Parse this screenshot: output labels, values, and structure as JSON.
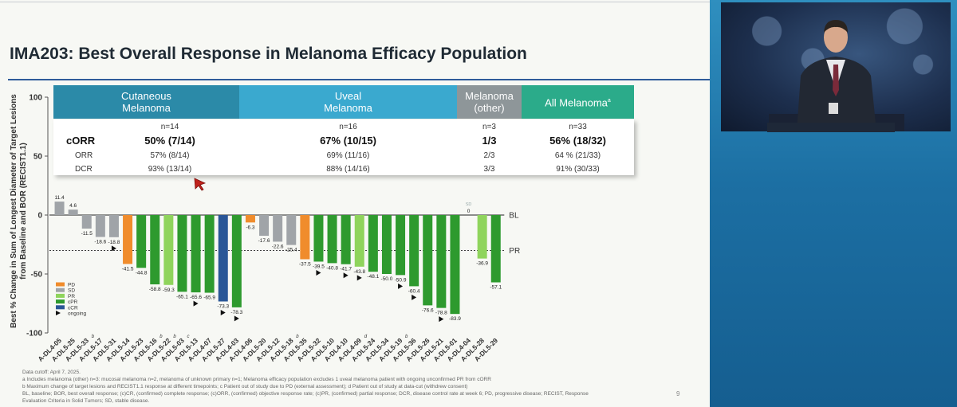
{
  "slide": {
    "title": "IMA203: Best Overall Response in Melanoma Efficacy Population",
    "page_number": "9"
  },
  "headers": [
    {
      "line1": "Cutaneous",
      "line2": "Melanoma",
      "color": "#2b8aa8"
    },
    {
      "line1": "Uveal",
      "line2": "Melanoma",
      "color": "#3aa9cf"
    },
    {
      "line1": "Melanoma",
      "line2": "(other)",
      "color": "#8e9699"
    },
    {
      "line1": "All Melanoma",
      "sup": "a",
      "line2": "",
      "color": "#2bab8a"
    }
  ],
  "stats": {
    "row_labels": {
      "corr": "cORR",
      "orr": "ORR",
      "dcr": "DCR"
    },
    "columns": [
      {
        "n": "n=14",
        "corr": "50% (7/14)",
        "orr": "57% (8/14)",
        "dcr": "93% (13/14)"
      },
      {
        "n": "n=16",
        "corr": "67% (10/15)",
        "orr": "69% (11/16)",
        "dcr": "88% (14/16)"
      },
      {
        "n": "n=3",
        "corr": "1/3",
        "orr": "2/3",
        "dcr": "3/3"
      },
      {
        "n": "n=33",
        "corr": "56% (18/32)",
        "orr": "64 % (21/33)",
        "dcr": "91% (30/33)"
      }
    ]
  },
  "chart_data": {
    "type": "bar",
    "title": "",
    "ylabel_line1": "Best % Change in Sum of Longest Diameter of Target Lesions",
    "ylabel_line2": "from Baseline and BOR (RECIST1.1)",
    "ylim": [
      -100,
      100
    ],
    "yticks": [
      "100",
      "50",
      "0",
      "-50",
      "-100"
    ],
    "ytick_values": [
      100,
      50,
      0,
      -50,
      -100
    ],
    "reference_lines": [
      {
        "label": "BL",
        "value": 0
      },
      {
        "label": "PR",
        "value": -30
      }
    ],
    "colors": {
      "PD": "#f08c2c",
      "SD": "#a0a4a8",
      "PR": "#8fd45c",
      "cPR": "#2e9a2e",
      "cCR": "#2a5697"
    },
    "legend": [
      {
        "key": "PD",
        "label": "PD"
      },
      {
        "key": "SD",
        "label": "SD"
      },
      {
        "key": "PR",
        "label": "PR"
      },
      {
        "key": "cPR",
        "label": "cPR"
      },
      {
        "key": "cCR",
        "label": "cCR"
      },
      {
        "key": "ongoing",
        "label": "ongoing"
      }
    ],
    "bars": [
      {
        "id": "A-DL4-05",
        "value": 11.4,
        "label": "11.4",
        "cat": "SD",
        "ongoing": false
      },
      {
        "id": "A-DL5-25",
        "value": 4.6,
        "label": "4.6",
        "cat": "SD",
        "ongoing": false
      },
      {
        "id": "A-DL5-33",
        "sup": "b",
        "value": -11.5,
        "label": "-11.5",
        "cat": "SD",
        "ongoing": false
      },
      {
        "id": "A-DL5-17",
        "value": -18.6,
        "label": "-18.6",
        "cat": "SD",
        "ongoing": false
      },
      {
        "id": "A-DL5-31",
        "value": -18.8,
        "label": "-18.8",
        "cat": "SD",
        "ongoing": true
      },
      {
        "id": "A-DL5-14",
        "value": -41.5,
        "label": "-41.5",
        "cat": "PD",
        "ongoing": false
      },
      {
        "id": "A-DL5-23",
        "value": -44.8,
        "label": "-44.8",
        "cat": "cPR",
        "ongoing": false
      },
      {
        "id": "A-DL5-16",
        "sup": "b",
        "value": -58.8,
        "label": "-58.8",
        "cat": "cPR",
        "ongoing": false
      },
      {
        "id": "A-DL5-22",
        "sup": "b",
        "value": -59.3,
        "label": "-59.3",
        "cat": "PR",
        "ongoing": false
      },
      {
        "id": "A-DL5-03",
        "sup": "c",
        "value": -65.1,
        "label": "-65.1",
        "cat": "cPR",
        "ongoing": false
      },
      {
        "id": "A-DL5-13",
        "value": -65.6,
        "label": "-65.6",
        "cat": "cPR",
        "ongoing": true
      },
      {
        "id": "A-DL4-07",
        "value": -65.9,
        "label": "-65.9",
        "cat": "cPR",
        "ongoing": false
      },
      {
        "id": "A-DL5-27",
        "value": -73.3,
        "label": "-73.3",
        "cat": "cCR",
        "ongoing": true
      },
      {
        "id": "A-DL4-03",
        "value": -78.3,
        "label": "-78.3",
        "cat": "cPR",
        "ongoing": true
      },
      {
        "id": "A-DL4-06",
        "value": -6.3,
        "label": "-6.3",
        "cat": "PD",
        "ongoing": false
      },
      {
        "id": "A-DL5-20",
        "value": -17.6,
        "label": "-17.6",
        "cat": "SD",
        "ongoing": false
      },
      {
        "id": "A-DL5-12",
        "value": -22.6,
        "label": "-22.6",
        "cat": "SD",
        "ongoing": false
      },
      {
        "id": "A-DL5-18",
        "sup": "b",
        "value": -25.4,
        "label": "-25.4",
        "cat": "SD",
        "ongoing": false
      },
      {
        "id": "A-DL5-35",
        "value": -37.5,
        "label": "-37.5",
        "cat": "PD",
        "ongoing": false
      },
      {
        "id": "A-DL5-32",
        "value": -39.5,
        "label": "-39.5",
        "cat": "cPR",
        "ongoing": true
      },
      {
        "id": "A-DL5-10",
        "value": -40.8,
        "label": "-40.8",
        "cat": "cPR",
        "ongoing": false
      },
      {
        "id": "A-DL4-10",
        "value": -41.7,
        "label": "-41.7",
        "cat": "cPR",
        "ongoing": true
      },
      {
        "id": "A-DL4-09",
        "sup": "d",
        "value": -43.8,
        "label": "-43.8",
        "cat": "PR",
        "ongoing": true
      },
      {
        "id": "A-DL5-24",
        "value": -48.1,
        "label": "-48.1",
        "cat": "cPR",
        "ongoing": false
      },
      {
        "id": "A-DL5-34",
        "value": -50.0,
        "label": "-50.0",
        "cat": "cPR",
        "ongoing": false
      },
      {
        "id": "A-DL5-19",
        "sup": "b",
        "value": -50.9,
        "label": "-50.9",
        "cat": "cPR",
        "ongoing": true
      },
      {
        "id": "A-DL5-36",
        "value": -60.4,
        "label": "-60.4",
        "cat": "cPR",
        "ongoing": true
      },
      {
        "id": "A-DL5-26",
        "value": -76.6,
        "label": "-76.6",
        "cat": "cPR",
        "ongoing": false
      },
      {
        "id": "A-DL5-21",
        "value": -78.8,
        "label": "-78.8",
        "cat": "cPR",
        "ongoing": true
      },
      {
        "id": "A-DL5-01",
        "value": -83.9,
        "label": "-83.9",
        "cat": "cPR",
        "ongoing": false
      },
      {
        "id": "A-DL4-04",
        "value": 0,
        "label": "0",
        "top_label": "SD",
        "cat": "SD",
        "ongoing": false
      },
      {
        "id": "A-DL5-28",
        "value": -36.9,
        "label": "-36.9",
        "cat": "PR",
        "ongoing": false
      },
      {
        "id": "A-DL5-29",
        "value": -57.1,
        "label": "-57.1",
        "cat": "cPR",
        "ongoing": false
      }
    ]
  },
  "footnotes": [
    "Data cutoff: April 7, 2025.",
    "a Includes melanoma (other) n=3: mucosal melanoma n=2, melanoma of unknown primary n=1; Melanoma efficacy population excludes 1 uveal melanoma patient with ongoing unconfirmed PR from cORR",
    "b Maximum change of target lesions and RECIST1.1 response at different timepoints; c Patient out of study due to PD (external assessment); d Patient out of study at data-cut (withdrew consent)",
    "BL, baseline; BOR, best overall response; (c)CR, (confirmed) complete response; (c)ORR, (confirmed) objective response rate; (c)PR, (confirmed) partial response; DCR, disease control rate at week 6; PD, progressive disease; RECIST, Response",
    "Evaluation Criteria in Solid Tumors; SD, stable disease."
  ],
  "theme": {
    "title_rule": "#2f5b9a",
    "arrow": "#c0221c"
  }
}
